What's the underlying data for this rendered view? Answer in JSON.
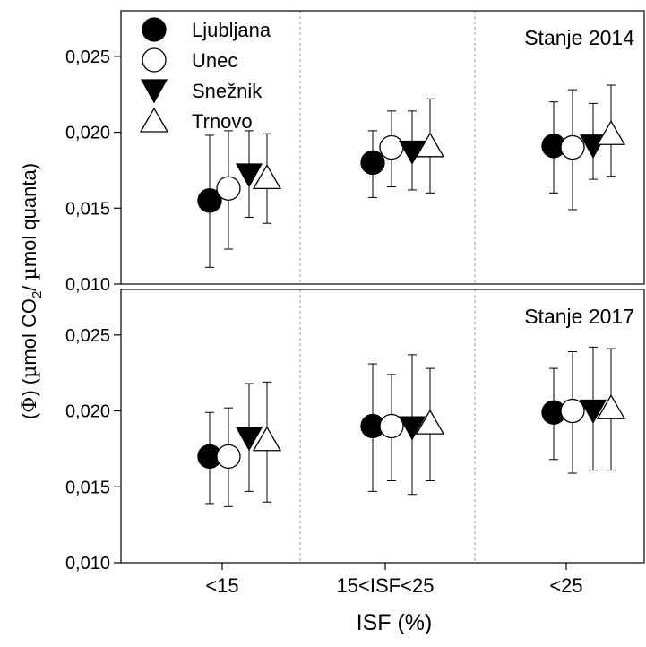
{
  "chart_data": {
    "type": "scatter",
    "categories": [
      "<15",
      "15<ISF<25",
      "<25"
    ],
    "xlabel": "ISF (%)",
    "ylabel": "(Φ) (µmol CO2/ µmol quanta)",
    "ylabel_parts": [
      "(",
      "Φ",
      ") (",
      "µ",
      "mol CO",
      "2",
      "/ ",
      "µ",
      "mol quanta)"
    ],
    "ylim": [
      0.01,
      0.028
    ],
    "yticks": [
      "0,010",
      "0,015",
      "0,020",
      "0,025"
    ],
    "grid": "vertical dotted",
    "legend_position": "top-left",
    "series_styles": [
      {
        "name": "Ljubljana",
        "marker": "circle",
        "fill": "#000000"
      },
      {
        "name": "Unec",
        "marker": "circle",
        "fill": "#ffffff"
      },
      {
        "name": "Snežnik",
        "marker": "triangle-down",
        "fill": "#000000"
      },
      {
        "name": "Trnovo",
        "marker": "triangle-up",
        "fill": "#ffffff"
      }
    ],
    "panels": [
      {
        "title": "Stanje 2014",
        "series": [
          {
            "name": "Ljubljana",
            "values": [
              0.0155,
              0.018,
              0.0191
            ],
            "err_low": [
              0.0111,
              0.0157,
              0.016
            ],
            "err_high": [
              0.0198,
              0.0201,
              0.022
            ]
          },
          {
            "name": "Unec",
            "values": [
              0.0163,
              0.019,
              0.019
            ],
            "err_low": [
              0.0123,
              0.0164,
              0.0149
            ],
            "err_high": [
              0.0201,
              0.0214,
              0.0228
            ]
          },
          {
            "name": "Snežnik",
            "values": [
              0.0172,
              0.0187,
              0.0191
            ],
            "err_low": [
              0.0144,
              0.0162,
              0.0169
            ],
            "err_high": [
              0.0201,
              0.0214,
              0.0219
            ]
          },
          {
            "name": "Trnovo",
            "values": [
              0.017,
              0.0191,
              0.0199
            ],
            "err_low": [
              0.014,
              0.016,
              0.0171
            ],
            "err_high": [
              0.0199,
              0.0222,
              0.0231
            ]
          }
        ]
      },
      {
        "title": "Stanje 2017",
        "series": [
          {
            "name": "Ljubljana",
            "values": [
              0.017,
              0.019,
              0.0199
            ],
            "err_low": [
              0.0139,
              0.0147,
              0.0168
            ],
            "err_high": [
              0.0199,
              0.0231,
              0.0228
            ]
          },
          {
            "name": "Unec",
            "values": [
              0.017,
              0.019,
              0.02
            ],
            "err_low": [
              0.0137,
              0.0154,
              0.0159
            ],
            "err_high": [
              0.0202,
              0.0224,
              0.0239
            ]
          },
          {
            "name": "Snežnik",
            "values": [
              0.0182,
              0.0189,
              0.02
            ],
            "err_low": [
              0.0147,
              0.0145,
              0.0161
            ],
            "err_high": [
              0.0218,
              0.0237,
              0.0242
            ]
          },
          {
            "name": "Trnovo",
            "values": [
              0.0181,
              0.0192,
              0.0202
            ],
            "err_low": [
              0.014,
              0.0154,
              0.0161
            ],
            "err_high": [
              0.0219,
              0.0228,
              0.0241
            ]
          }
        ]
      }
    ]
  }
}
